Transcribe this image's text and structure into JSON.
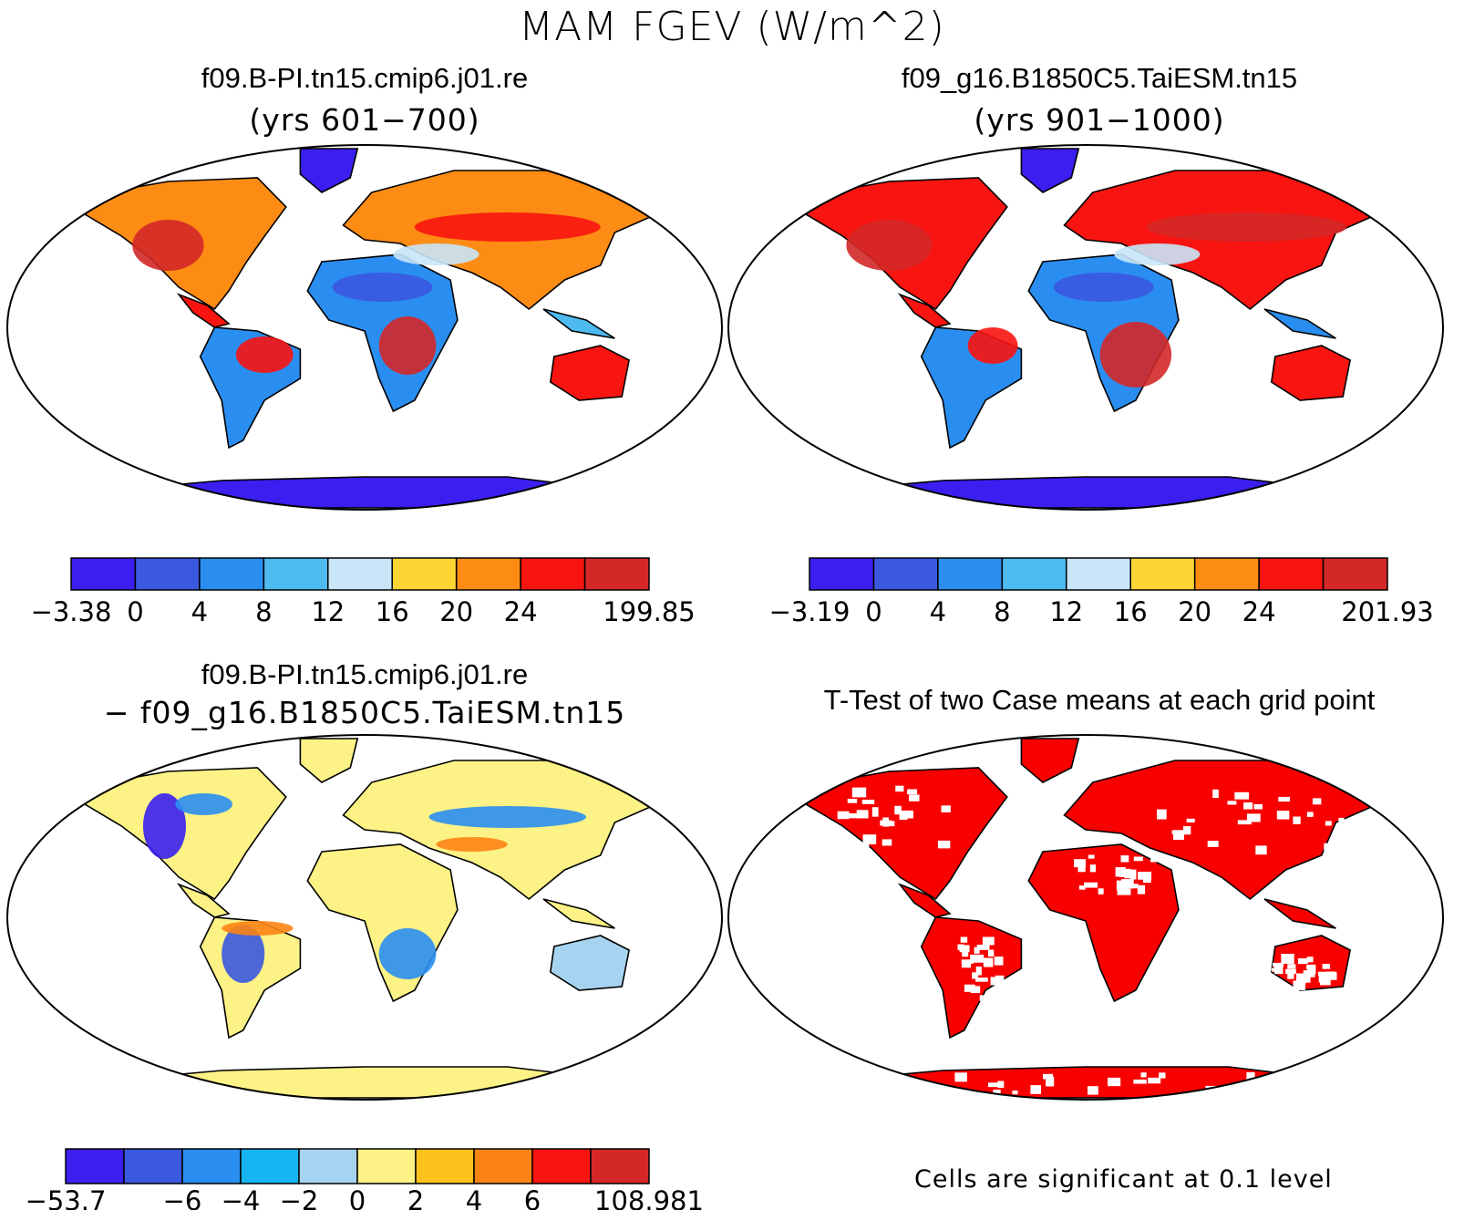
{
  "figure": {
    "title": "MAM FGEV (W/m^2)"
  },
  "panels": [
    {
      "title": "f09.B-PI.tn15.cmip6.j01.re",
      "subtitle": "(yrs 601−700)",
      "colorbar": {
        "labels": [
          "−3.38",
          "0",
          "4",
          "8",
          "12",
          "16",
          "20",
          "24",
          "199.85"
        ],
        "colors": [
          "#3a1ff0",
          "#3a58e0",
          "#2a8ef0",
          "#4dbaf0",
          "#c8e6f8",
          "#fcd535",
          "#fc8c14",
          "#f81410",
          "#d42828"
        ]
      }
    },
    {
      "title": "f09_g16.B1850C5.TaiESM.tn15",
      "subtitle": "(yrs 901−1000)",
      "colorbar": {
        "labels": [
          "−3.19",
          "0",
          "4",
          "8",
          "12",
          "16",
          "20",
          "24",
          "201.93"
        ],
        "colors": [
          "#3a1ff0",
          "#3a58e0",
          "#2a8ef0",
          "#4dbaf0",
          "#c8e6f8",
          "#fcd535",
          "#fc8c14",
          "#f81410",
          "#d42828"
        ]
      }
    },
    {
      "title": "f09.B-PI.tn15.cmip6.j01.re",
      "subtitle": "− f09_g16.B1850C5.TaiESM.tn15",
      "colorbar": {
        "labels": [
          "−53.7",
          "−6",
          "−4",
          "−2",
          "0",
          "2",
          "4",
          "6",
          "108.981"
        ],
        "colors": [
          "#3a1ff0",
          "#3a58e0",
          "#2a8ef0",
          "#16b4f0",
          "#a6d4f0",
          "#fcf286",
          "#fcc21c",
          "#fc8414",
          "#f81410",
          "#d42828"
        ]
      }
    },
    {
      "title": "T-Test of two Case means at each grid point",
      "note": "Cells are significant at 0.1 level",
      "significant_color": "#f80000"
    }
  ]
}
